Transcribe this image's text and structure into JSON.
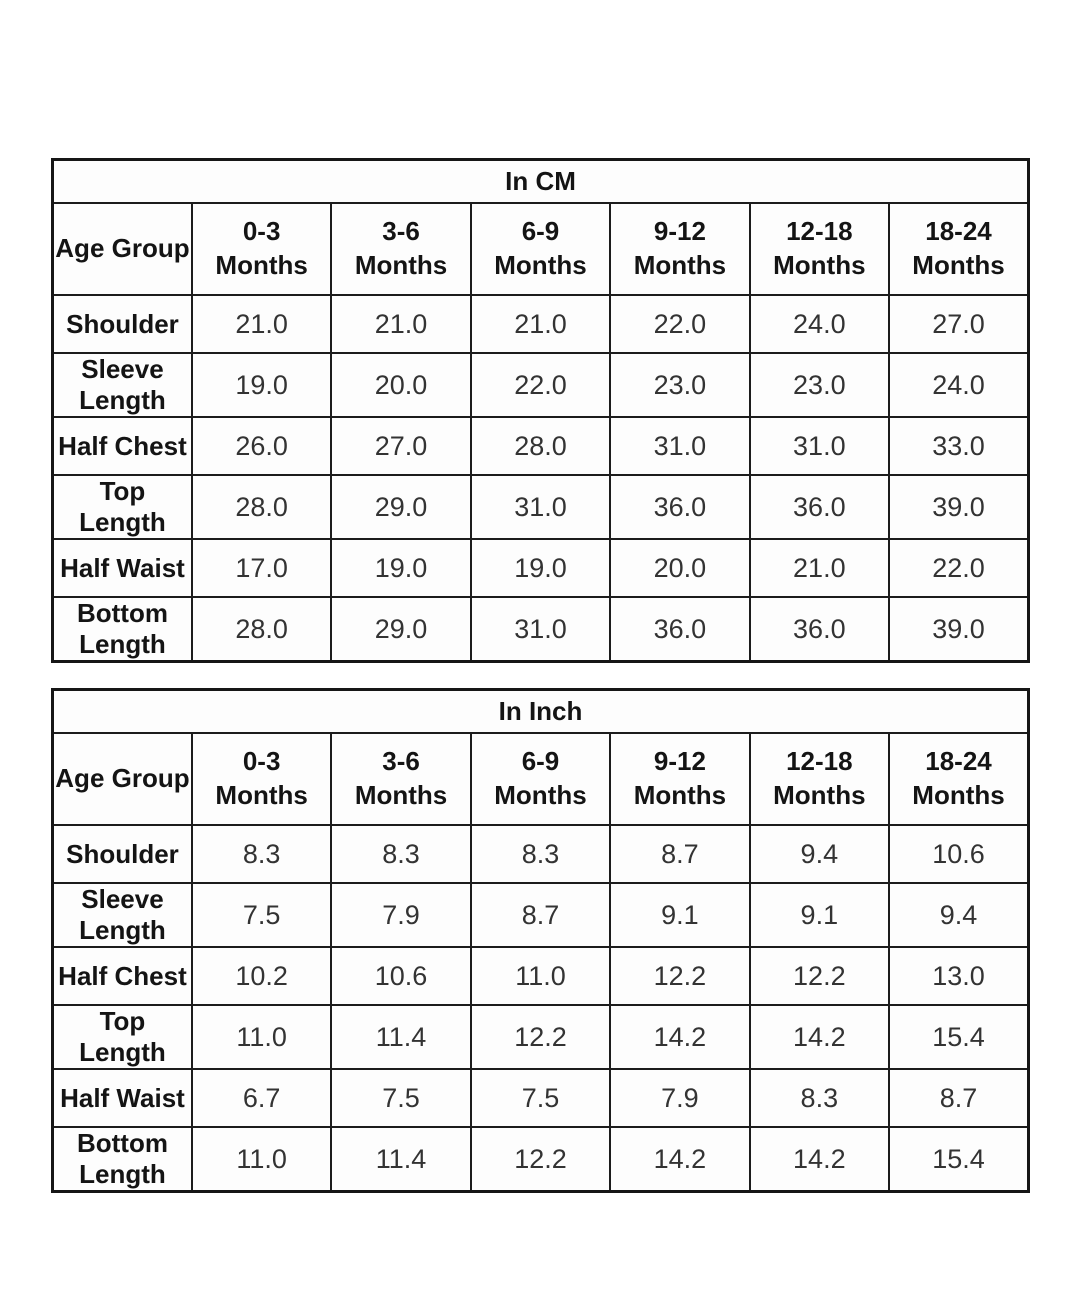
{
  "colors": {
    "background": "#ffffff",
    "border": "#1c1c1c",
    "label_text": "#141414",
    "value_text": "#333333"
  },
  "chart_data": [
    {
      "type": "table",
      "title": "In CM",
      "corner_label": "Age Group",
      "column_headers": [
        {
          "range": "0-3",
          "unit": "Months"
        },
        {
          "range": "3-6",
          "unit": "Months"
        },
        {
          "range": "6-9",
          "unit": "Months"
        },
        {
          "range": "9-12",
          "unit": "Months"
        },
        {
          "range": "12-18",
          "unit": "Months"
        },
        {
          "range": "18-24",
          "unit": "Months"
        }
      ],
      "rows": [
        {
          "label": "Shoulder",
          "values": [
            "21.0",
            "21.0",
            "21.0",
            "22.0",
            "24.0",
            "27.0"
          ]
        },
        {
          "label": "Sleeve Length",
          "values": [
            "19.0",
            "20.0",
            "22.0",
            "23.0",
            "23.0",
            "24.0"
          ]
        },
        {
          "label": "Half Chest",
          "values": [
            "26.0",
            "27.0",
            "28.0",
            "31.0",
            "31.0",
            "33.0"
          ]
        },
        {
          "label": "Top Length",
          "values": [
            "28.0",
            "29.0",
            "31.0",
            "36.0",
            "36.0",
            "39.0"
          ]
        },
        {
          "label": "Half Waist",
          "values": [
            "17.0",
            "19.0",
            "19.0",
            "20.0",
            "21.0",
            "22.0"
          ]
        },
        {
          "label": "Bottom Length",
          "values": [
            "28.0",
            "29.0",
            "31.0",
            "36.0",
            "36.0",
            "39.0"
          ]
        }
      ]
    },
    {
      "type": "table",
      "title": "In Inch",
      "corner_label": "Age Group",
      "column_headers": [
        {
          "range": "0-3",
          "unit": "Months"
        },
        {
          "range": "3-6",
          "unit": "Months"
        },
        {
          "range": "6-9",
          "unit": "Months"
        },
        {
          "range": "9-12",
          "unit": "Months"
        },
        {
          "range": "12-18",
          "unit": "Months"
        },
        {
          "range": "18-24",
          "unit": "Months"
        }
      ],
      "rows": [
        {
          "label": "Shoulder",
          "values": [
            "8.3",
            "8.3",
            "8.3",
            "8.7",
            "9.4",
            "10.6"
          ]
        },
        {
          "label": "Sleeve Length",
          "values": [
            "7.5",
            "7.9",
            "8.7",
            "9.1",
            "9.1",
            "9.4"
          ]
        },
        {
          "label": "Half Chest",
          "values": [
            "10.2",
            "10.6",
            "11.0",
            "12.2",
            "12.2",
            "13.0"
          ]
        },
        {
          "label": "Top Length",
          "values": [
            "11.0",
            "11.4",
            "12.2",
            "14.2",
            "14.2",
            "15.4"
          ]
        },
        {
          "label": "Half Waist",
          "values": [
            "6.7",
            "7.5",
            "7.5",
            "7.9",
            "8.3",
            "8.7"
          ]
        },
        {
          "label": "Bottom Length",
          "values": [
            "11.0",
            "11.4",
            "12.2",
            "14.2",
            "14.2",
            "15.4"
          ]
        }
      ]
    }
  ]
}
